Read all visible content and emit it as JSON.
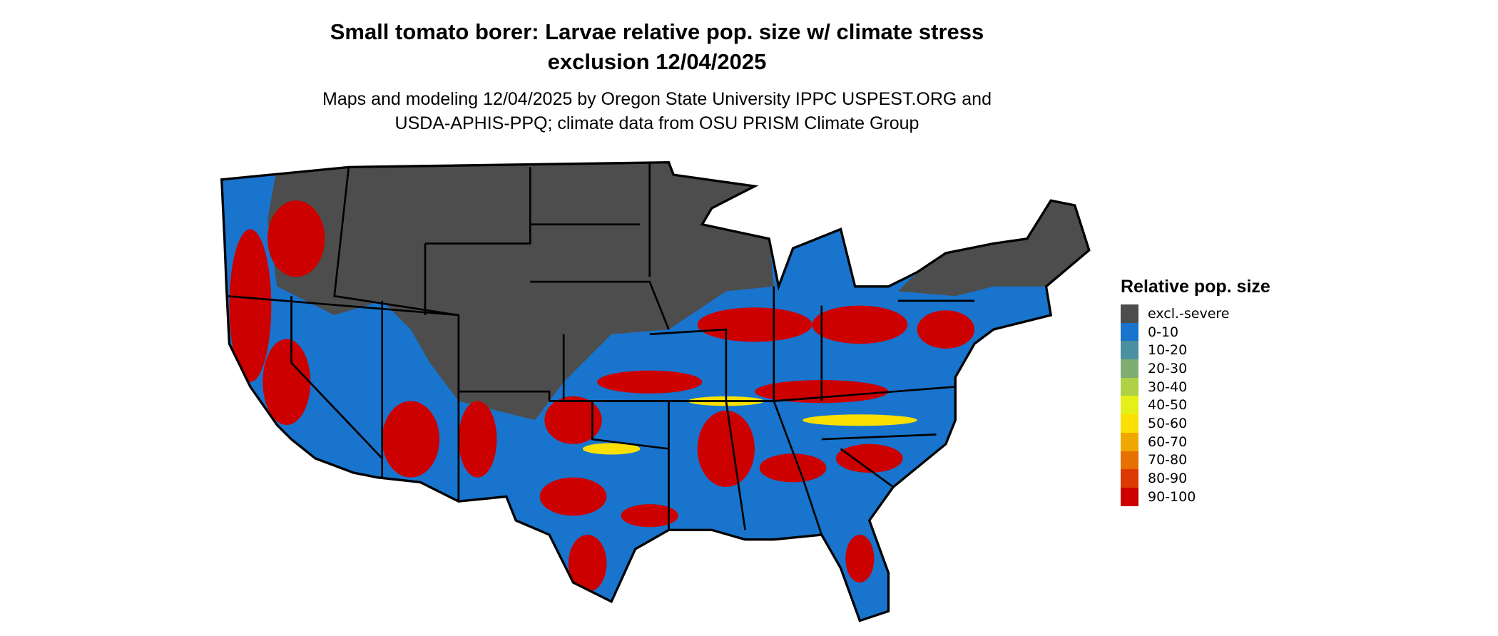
{
  "title_line1": "Small tomato borer: Larvae relative pop. size w/ climate stress",
  "title_line2": "exclusion 12/04/2025",
  "subtitle_line1": "Maps and modeling 12/04/2025 by Oregon State University IPPC USPEST.ORG and",
  "subtitle_line2": "USDA-APHIS-PPQ; climate data from OSU PRISM Climate Group",
  "legend": {
    "title": "Relative pop. size",
    "items": [
      {
        "label": "excl.-severe",
        "color": "#4d4d4d"
      },
      {
        "label": "0-10",
        "color": "#1874cd"
      },
      {
        "label": "10-20",
        "color": "#4a90a0"
      },
      {
        "label": "20-30",
        "color": "#7fae72"
      },
      {
        "label": "30-40",
        "color": "#b0d045"
      },
      {
        "label": "40-50",
        "color": "#e6ef17"
      },
      {
        "label": "50-60",
        "color": "#f9e000"
      },
      {
        "label": "60-70",
        "color": "#eea800"
      },
      {
        "label": "70-80",
        "color": "#e67000"
      },
      {
        "label": "80-90",
        "color": "#dc3a00"
      },
      {
        "label": "90-100",
        "color": "#cd0000"
      }
    ]
  }
}
